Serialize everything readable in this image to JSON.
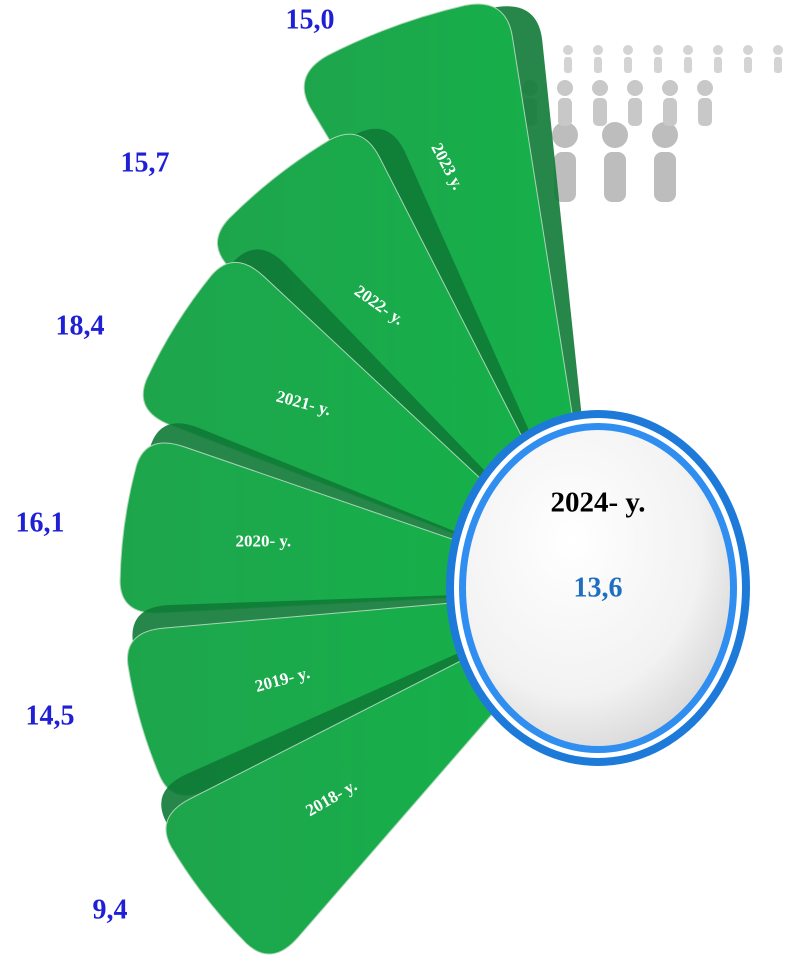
{
  "items": [
    {
      "year": "2023 y.",
      "value": "15,0"
    },
    {
      "year": "2022- y.",
      "value": "15,7"
    },
    {
      "year": "2021- y.",
      "value": "18,4"
    },
    {
      "year": "2020- y.",
      "value": "16,1"
    },
    {
      "year": "2019- y.",
      "value": "14,5"
    },
    {
      "year": "2018- y.",
      "value": "9,4"
    }
  ],
  "center": {
    "year": "2024- y.",
    "value": "13,6"
  }
}
